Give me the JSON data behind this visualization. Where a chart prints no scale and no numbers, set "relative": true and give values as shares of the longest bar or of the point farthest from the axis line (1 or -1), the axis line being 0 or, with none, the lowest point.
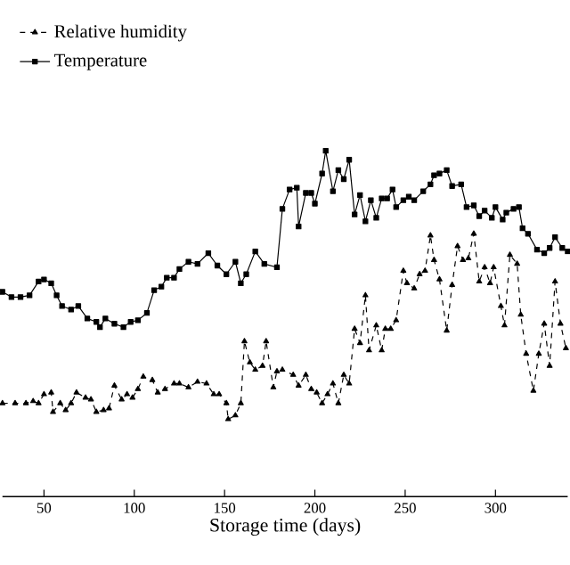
{
  "chart_data": {
    "type": "line",
    "xlabel": "Storage time (days)",
    "relative": true,
    "xlim": [
      27,
      340
    ],
    "xticks": [
      50,
      100,
      150,
      200,
      250,
      300
    ],
    "legend": "top left",
    "grid": false,
    "series": [
      {
        "name": "Relative humidity",
        "color": "#000000",
        "marker": "triangle",
        "line_style": "dashed",
        "x": [
          27,
          34,
          40,
          44,
          47,
          50,
          54,
          55,
          59,
          62,
          65,
          68,
          73,
          76,
          79,
          83,
          86,
          89,
          93,
          96,
          99,
          102,
          105,
          110,
          113,
          117,
          122,
          125,
          130,
          135,
          140,
          144,
          147,
          151,
          152,
          156,
          159,
          161,
          164,
          167,
          171,
          173,
          177,
          179,
          182,
          188,
          191,
          195,
          198,
          201,
          204,
          207,
          210,
          213,
          216,
          219,
          222,
          225,
          228,
          230,
          234,
          237,
          239,
          242,
          245,
          249,
          251,
          255,
          258,
          261,
          264,
          266,
          269,
          273,
          276,
          279,
          282,
          285,
          288,
          291,
          294,
          297,
          299,
          303,
          305,
          308,
          312,
          314,
          317,
          321,
          324,
          327,
          330,
          333,
          336,
          339
        ],
        "values": [
          0.27,
          0.27,
          0.27,
          0.276,
          0.27,
          0.296,
          0.301,
          0.245,
          0.27,
          0.25,
          0.27,
          0.301,
          0.286,
          0.281,
          0.245,
          0.25,
          0.255,
          0.321,
          0.281,
          0.296,
          0.286,
          0.311,
          0.347,
          0.337,
          0.301,
          0.311,
          0.327,
          0.327,
          0.316,
          0.332,
          0.327,
          0.296,
          0.296,
          0.27,
          0.224,
          0.235,
          0.27,
          0.449,
          0.388,
          0.367,
          0.378,
          0.449,
          0.316,
          0.362,
          0.367,
          0.352,
          0.321,
          0.352,
          0.311,
          0.301,
          0.27,
          0.296,
          0.327,
          0.27,
          0.352,
          0.327,
          0.485,
          0.444,
          0.582,
          0.423,
          0.495,
          0.423,
          0.485,
          0.485,
          0.51,
          0.653,
          0.617,
          0.602,
          0.643,
          0.653,
          0.755,
          0.684,
          0.628,
          0.48,
          0.612,
          0.724,
          0.684,
          0.689,
          0.76,
          0.622,
          0.663,
          0.617,
          0.663,
          0.551,
          0.495,
          0.699,
          0.673,
          0.526,
          0.413,
          0.306,
          0.413,
          0.5,
          0.378,
          0.622,
          0.5,
          0.429
        ]
      },
      {
        "name": "Temperature",
        "color": "#000000",
        "marker": "square",
        "line_style": "solid",
        "x": [
          27,
          32,
          37,
          42,
          47,
          50,
          54,
          57,
          60,
          65,
          69,
          74,
          79,
          81,
          84,
          89,
          94,
          98,
          102,
          107,
          111,
          115,
          118,
          122,
          125,
          130,
          135,
          141,
          146,
          151,
          156,
          159,
          162,
          167,
          172,
          179,
          182,
          186,
          190,
          191,
          195,
          198,
          200,
          204,
          206,
          210,
          213,
          216,
          219,
          222,
          225,
          228,
          231,
          234,
          237,
          240,
          243,
          245,
          249,
          252,
          255,
          260,
          264,
          266,
          269,
          273,
          276,
          281,
          284,
          288,
          291,
          294,
          298,
          300,
          304,
          306,
          310,
          313,
          315,
          318,
          323,
          327,
          330,
          333,
          337,
          340
        ],
        "values": [
          0.592,
          0.577,
          0.577,
          0.582,
          0.622,
          0.628,
          0.617,
          0.582,
          0.551,
          0.541,
          0.551,
          0.515,
          0.505,
          0.49,
          0.515,
          0.5,
          0.49,
          0.505,
          0.51,
          0.531,
          0.597,
          0.607,
          0.633,
          0.633,
          0.658,
          0.679,
          0.673,
          0.704,
          0.668,
          0.643,
          0.679,
          0.617,
          0.643,
          0.709,
          0.673,
          0.663,
          0.832,
          0.888,
          0.893,
          0.781,
          0.878,
          0.878,
          0.847,
          0.934,
          1,
          0.883,
          0.944,
          0.918,
          0.974,
          0.816,
          0.872,
          0.796,
          0.857,
          0.806,
          0.862,
          0.862,
          0.888,
          0.837,
          0.857,
          0.867,
          0.857,
          0.883,
          0.903,
          0.929,
          0.934,
          0.944,
          0.898,
          0.903,
          0.837,
          0.842,
          0.811,
          0.827,
          0.806,
          0.837,
          0.801,
          0.821,
          0.832,
          0.837,
          0.776,
          0.76,
          0.714,
          0.704,
          0.719,
          0.75,
          0.719,
          0.709
        ]
      }
    ]
  }
}
